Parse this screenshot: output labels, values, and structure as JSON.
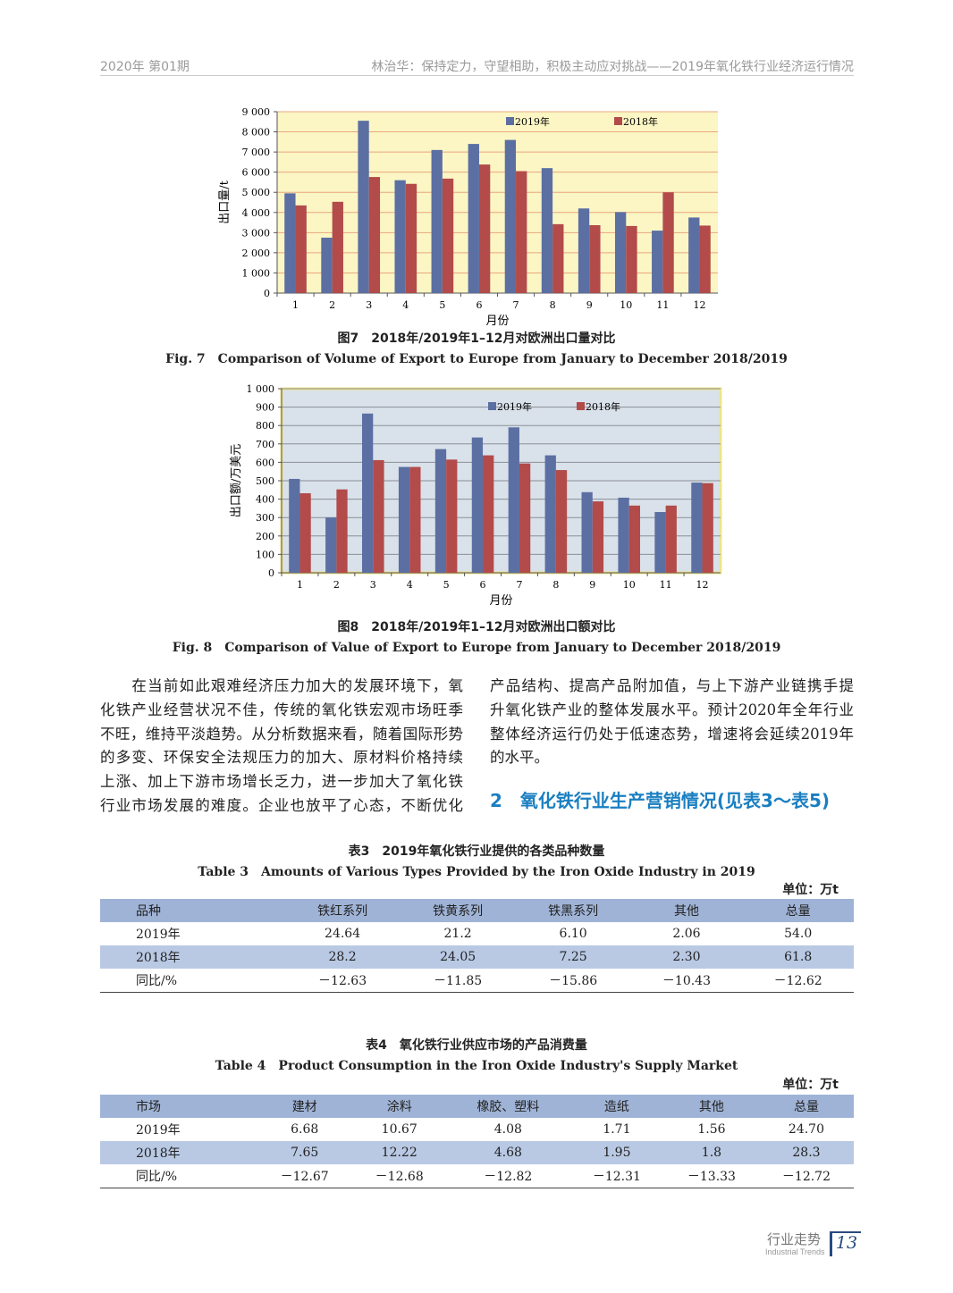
{
  "header": {
    "issue": "2020年 第01期",
    "article": "林治华：保持定力，守望相助，积极主动应对挑战——2019年氧化铁行业经济运行情况"
  },
  "colors": {
    "series_2019": "#5b6fa3",
    "series_2018": "#b24b4a",
    "table_header": "#9fb3d6",
    "table_band": "#b9c9e4",
    "section_heading": "#1a7fc1"
  },
  "chart_data": [
    {
      "type": "bar",
      "title": "",
      "ylabel": "出口量/t",
      "xlabel": "月份",
      "ylim": [
        0,
        9000
      ],
      "yticks": [
        "0",
        "1 000",
        "2 000",
        "3 000",
        "4 000",
        "5 000",
        "6 000",
        "7 000",
        "8 000",
        "9 000"
      ],
      "grid": true,
      "legend": "top-right",
      "categories": [
        "1",
        "2",
        "3",
        "4",
        "5",
        "6",
        "7",
        "8",
        "9",
        "10",
        "11",
        "12"
      ],
      "series": [
        {
          "name": "2019年",
          "values": [
            4950,
            2750,
            8550,
            5600,
            7100,
            7400,
            7600,
            6200,
            4200,
            4020,
            3100,
            3750
          ]
        },
        {
          "name": "2018年",
          "values": [
            4350,
            4530,
            5760,
            5420,
            5680,
            6380,
            6050,
            3420,
            3370,
            3330,
            5000,
            3350
          ]
        }
      ]
    },
    {
      "type": "bar",
      "title": "",
      "ylabel": "出口额/万美元",
      "xlabel": "月份",
      "ylim": [
        0,
        1000
      ],
      "yticks": [
        "0",
        "100",
        "200",
        "300",
        "400",
        "500",
        "600",
        "700",
        "800",
        "900",
        "1 000"
      ],
      "grid": true,
      "legend": "top-right",
      "categories": [
        "1",
        "2",
        "3",
        "4",
        "5",
        "6",
        "7",
        "8",
        "9",
        "10",
        "11",
        "12"
      ],
      "series": [
        {
          "name": "2019年",
          "values": [
            510,
            300,
            865,
            575,
            672,
            735,
            790,
            638,
            438,
            408,
            330,
            490
          ]
        },
        {
          "name": "2018年",
          "values": [
            432,
            453,
            612,
            575,
            615,
            638,
            594,
            558,
            388,
            365,
            365,
            487
          ]
        }
      ]
    }
  ],
  "fig7": {
    "zh": "图7　2018年/2019年1–12月对欧洲出口量对比",
    "en": "Fig. 7　Comparison of Volume of Export to Europe from January to December 2018/2019"
  },
  "fig8": {
    "zh": "图8　2018年/2019年1–12月对欧洲出口额对比",
    "en": "Fig. 8　Comparison of Value of Export to Europe from January to December 2018/2019"
  },
  "body": {
    "left_lines": [
      "　　在当前如此艰难经济压力加大的发展环境下，氧",
      "化铁产业经营状况不佳，传统的氧化铁宏观市场旺季",
      "不旺，维持平淡趋势。从分析数据来看，随着国际形势",
      "的多变、环保安全法规压力的加大、原材料价格持续",
      "上涨、加上下游市场增长乏力，进一步加大了氧化铁",
      "行业市场发展的难度。企业也放平了心态，不断优化"
    ],
    "right_lines": [
      "产品结构、提高产品附加值，与上下游产业链携手提",
      "升氧化铁产业的整体发展水平。预计2020年全年行业",
      "整体经济运行仍处于低速态势，增速将会延续2019年",
      "的水平。"
    ],
    "section_heading": "2　氧化铁行业生产营销情况(见表3～表5)"
  },
  "table3": {
    "title_zh": "表3　2019年氧化铁行业提供的各类品种数量",
    "title_en": "Table 3　Amounts of Various Types Provided by the Iron Oxide Industry in 2019",
    "unit": "单位：万t",
    "headers": [
      "品种",
      "铁红系列",
      "铁黄系列",
      "铁黑系列",
      "其他",
      "总量"
    ],
    "rows": [
      [
        "2019年",
        "24.64",
        "21.2",
        "6.10",
        "2.06",
        "54.0"
      ],
      [
        "2018年",
        "28.2",
        "24.05",
        "7.25",
        "2.30",
        "61.8"
      ],
      [
        "同比/%",
        "－12.63",
        "－11.85",
        "－15.86",
        "－10.43",
        "－12.62"
      ]
    ]
  },
  "table4": {
    "title_zh": "表4　氧化铁行业供应市场的产品消费量",
    "title_en": "Table 4　Product Consumption in the Iron Oxide Industry's Supply Market",
    "unit": "单位：万t",
    "headers": [
      "市场",
      "建材",
      "涂料",
      "橡胶、塑料",
      "造纸",
      "其他",
      "总量"
    ],
    "rows": [
      [
        "2019年",
        "6.68",
        "10.67",
        "4.08",
        "1.71",
        "1.56",
        "24.70"
      ],
      [
        "2018年",
        "7.65",
        "12.22",
        "4.68",
        "1.95",
        "1.8",
        "28.3"
      ],
      [
        "同比/%",
        "－12.67",
        "－12.68",
        "－12.82",
        "－12.31",
        "－13.33",
        "－12.72"
      ]
    ]
  },
  "footer": {
    "section_zh": "行业走势",
    "section_en": "Industrial Trends",
    "page": "13"
  }
}
